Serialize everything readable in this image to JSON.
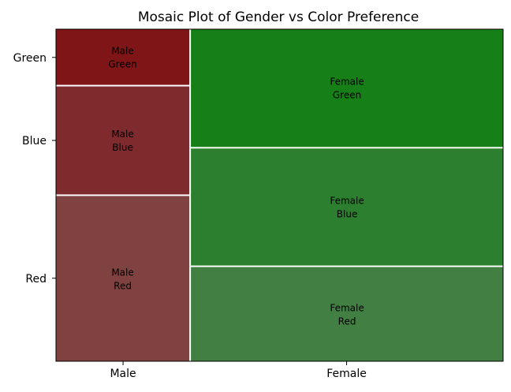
{
  "chart_data": {
    "type": "mosaic",
    "title": "Mosaic Plot of Gender vs Color Preference",
    "xlabel": "",
    "ylabel": "",
    "x_categories": [
      "Male",
      "Female"
    ],
    "x_proportions": [
      0.3,
      0.7
    ],
    "y_categories": [
      "Red",
      "Blue",
      "Green"
    ],
    "y_tick_labels": [
      "Red",
      "Blue",
      "Green"
    ],
    "cells": [
      {
        "x": "Male",
        "y": "Red",
        "fraction": 0.5,
        "label": "Male\nRed",
        "color": "#7f4240"
      },
      {
        "x": "Male",
        "y": "Blue",
        "fraction": 0.33,
        "label": "Male\nBlue",
        "color": "#7f2a2d"
      },
      {
        "x": "Male",
        "y": "Green",
        "fraction": 0.17,
        "label": "Male\nGreen",
        "color": "#7f1516"
      },
      {
        "x": "Female",
        "y": "Red",
        "fraction": 0.286,
        "label": "Female\nRed",
        "color": "#427f43"
      },
      {
        "x": "Female",
        "y": "Blue",
        "fraction": 0.357,
        "label": "Female\nBlue",
        "color": "#2c7f2f"
      },
      {
        "x": "Female",
        "y": "Green",
        "fraction": 0.357,
        "label": "Female\nGreen",
        "color": "#167f17"
      }
    ],
    "grid": false
  }
}
